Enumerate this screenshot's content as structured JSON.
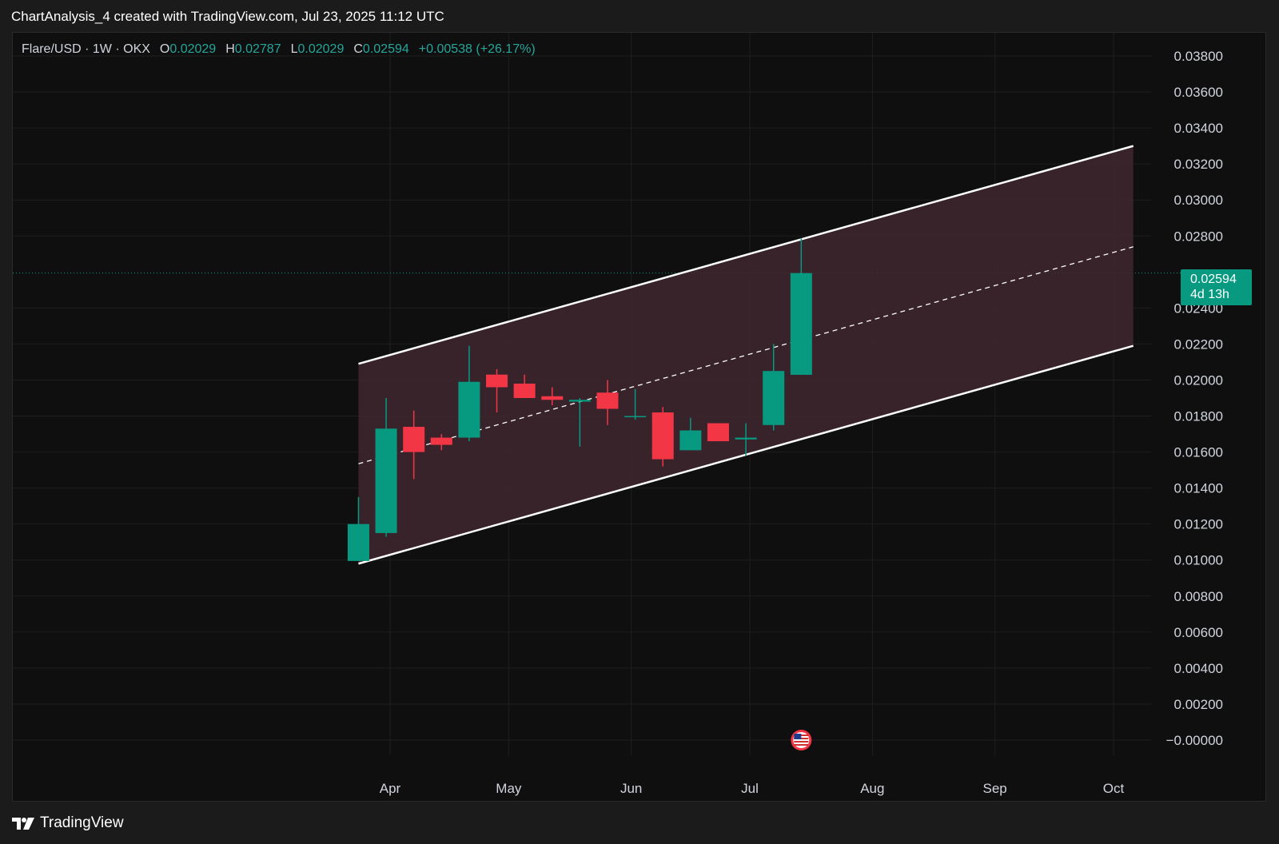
{
  "header": {
    "title": "ChartAnalysis_4 created with TradingView.com, Jul 23, 2025 11:12 UTC"
  },
  "legend": {
    "symbol": "Flare/USD · 1W · OKX",
    "open_label": "O",
    "open": "0.02029",
    "high_label": "H",
    "high": "0.02787",
    "low_label": "L",
    "low": "0.02029",
    "close_label": "C",
    "close": "0.02594",
    "change": "+0.00538 (+26.17%)"
  },
  "price_tag": {
    "price": "0.02594",
    "countdown": "4d 13h"
  },
  "footer": {
    "brand": "TradingView"
  },
  "colors": {
    "up": "#089981",
    "down": "#f23645",
    "channel_fill": "#3f2730",
    "channel_line": "#ffffff",
    "background": "#0f0f0f"
  },
  "icons": {
    "event_marker": "us-flag-icon",
    "brand": "tradingview-logo-icon"
  },
  "chart_data": {
    "type": "candlestick",
    "interval": "1W",
    "ylim": [
      -0.0002,
      0.039
    ],
    "y_ticks": [
      "0.03800",
      "0.03600",
      "0.03400",
      "0.03200",
      "0.03000",
      "0.02800",
      "0.02400",
      "0.02200",
      "0.02000",
      "0.01800",
      "0.01600",
      "0.01400",
      "0.01200",
      "0.01000",
      "0.00800",
      "0.00600",
      "0.00400",
      "0.00200",
      "−0.00000"
    ],
    "x_ticks": [
      {
        "label": "Apr",
        "date": "2025-04-01"
      },
      {
        "label": "May",
        "date": "2025-05-01"
      },
      {
        "label": "Jun",
        "date": "2025-06-01"
      },
      {
        "label": "Jul",
        "date": "2025-07-01"
      },
      {
        "label": "Aug",
        "date": "2025-08-01"
      },
      {
        "label": "Sep",
        "date": "2025-09-01"
      },
      {
        "label": "Oct",
        "date": "2025-10-01"
      }
    ],
    "candles": [
      {
        "date": "2025-03-24",
        "o": 0.00995,
        "h": 0.0135,
        "l": 0.00995,
        "c": 0.012
      },
      {
        "date": "2025-03-31",
        "o": 0.0115,
        "h": 0.019,
        "l": 0.0113,
        "c": 0.0173
      },
      {
        "date": "2025-04-07",
        "o": 0.0174,
        "h": 0.0183,
        "l": 0.0145,
        "c": 0.016
      },
      {
        "date": "2025-04-14",
        "o": 0.0168,
        "h": 0.017,
        "l": 0.0161,
        "c": 0.0164
      },
      {
        "date": "2025-04-21",
        "o": 0.0168,
        "h": 0.0219,
        "l": 0.0166,
        "c": 0.0199
      },
      {
        "date": "2025-04-28",
        "o": 0.0203,
        "h": 0.0206,
        "l": 0.0182,
        "c": 0.0196
      },
      {
        "date": "2025-05-05",
        "o": 0.0198,
        "h": 0.0203,
        "l": 0.019,
        "c": 0.019
      },
      {
        "date": "2025-05-12",
        "o": 0.0191,
        "h": 0.0196,
        "l": 0.0186,
        "c": 0.0189
      },
      {
        "date": "2025-05-19",
        "o": 0.0188,
        "h": 0.019,
        "l": 0.0163,
        "c": 0.0189
      },
      {
        "date": "2025-05-26",
        "o": 0.0193,
        "h": 0.02,
        "l": 0.0175,
        "c": 0.0184
      },
      {
        "date": "2025-06-02",
        "o": 0.018,
        "h": 0.0195,
        "l": 0.0178,
        "c": 0.018
      },
      {
        "date": "2025-06-09",
        "o": 0.0182,
        "h": 0.0185,
        "l": 0.0152,
        "c": 0.0156
      },
      {
        "date": "2025-06-16",
        "o": 0.0161,
        "h": 0.0179,
        "l": 0.0161,
        "c": 0.0172
      },
      {
        "date": "2025-06-23",
        "o": 0.0176,
        "h": 0.0176,
        "l": 0.0166,
        "c": 0.0166
      },
      {
        "date": "2025-06-30",
        "o": 0.0167,
        "h": 0.0176,
        "l": 0.0158,
        "c": 0.0168
      },
      {
        "date": "2025-07-07",
        "o": 0.0175,
        "h": 0.022,
        "l": 0.0172,
        "c": 0.0205
      },
      {
        "date": "2025-07-14",
        "o": 0.02029,
        "h": 0.02787,
        "l": 0.02029,
        "c": 0.02594
      }
    ],
    "channel": {
      "start_date": "2025-03-24",
      "end_date": "2025-10-06",
      "upper": [
        0.0209,
        0.033
      ],
      "middle": [
        0.01535,
        0.0274
      ],
      "lower": [
        0.0098,
        0.0219
      ]
    },
    "last_price": 0.02594,
    "event_marker_date": "2025-07-14"
  }
}
